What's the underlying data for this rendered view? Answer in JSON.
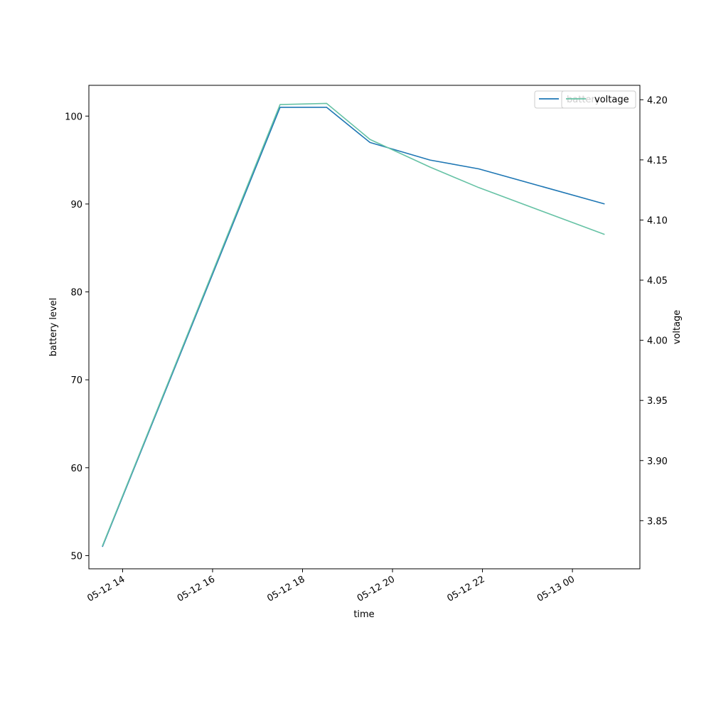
{
  "chart_data": {
    "type": "line",
    "xlabel": "time",
    "ylabel_left": "battery level",
    "ylabel_right": "voltage",
    "x_tick_labels": [
      "05-12 14",
      "05-12 16",
      "05-12 18",
      "05-12 20",
      "05-12 22",
      "05-13 00"
    ],
    "x_ticks": [
      "2024-05-12T14:00",
      "2024-05-12T16:00",
      "2024-05-12T18:00",
      "2024-05-12T20:00",
      "2024-05-12T22:00",
      "2024-05-13T00:00"
    ],
    "x_range": [
      "2024-05-12T13:15",
      "2024-05-13T01:30"
    ],
    "left_axis": {
      "ylim": [
        48.5,
        103.5
      ],
      "ticks": [
        50,
        60,
        70,
        80,
        90,
        100
      ],
      "tick_labels": [
        "50",
        "60",
        "70",
        "80",
        "90",
        "100"
      ]
    },
    "right_axis": {
      "ylim": [
        3.81,
        4.212
      ],
      "ticks": [
        3.85,
        3.9,
        3.95,
        4.0,
        4.05,
        4.1,
        4.15,
        4.2
      ],
      "tick_labels": [
        "3.85",
        "3.90",
        "3.95",
        "4.00",
        "4.05",
        "4.10",
        "4.15",
        "4.20"
      ]
    },
    "series": [
      {
        "name": "battery",
        "axis": "left",
        "color": "#1f77b4",
        "x": [
          "2024-05-12T13:33",
          "2024-05-12T17:30",
          "2024-05-12T18:32",
          "2024-05-12T19:30",
          "2024-05-12T20:50",
          "2024-05-12T21:55",
          "2024-05-13T00:43"
        ],
        "values": [
          51,
          101,
          101,
          97,
          95,
          94,
          90
        ]
      },
      {
        "name": "voltage",
        "axis": "right",
        "color": "#66c2a5",
        "x": [
          "2024-05-12T13:33",
          "2024-05-12T17:30",
          "2024-05-12T18:32",
          "2024-05-12T19:30",
          "2024-05-12T20:50",
          "2024-05-12T21:55",
          "2024-05-13T00:43"
        ],
        "values": [
          3.829,
          4.196,
          4.197,
          4.167,
          4.144,
          4.127,
          4.088
        ]
      }
    ],
    "legend": {
      "position": "top-right",
      "entries": [
        "battery",
        "voltage"
      ]
    }
  }
}
